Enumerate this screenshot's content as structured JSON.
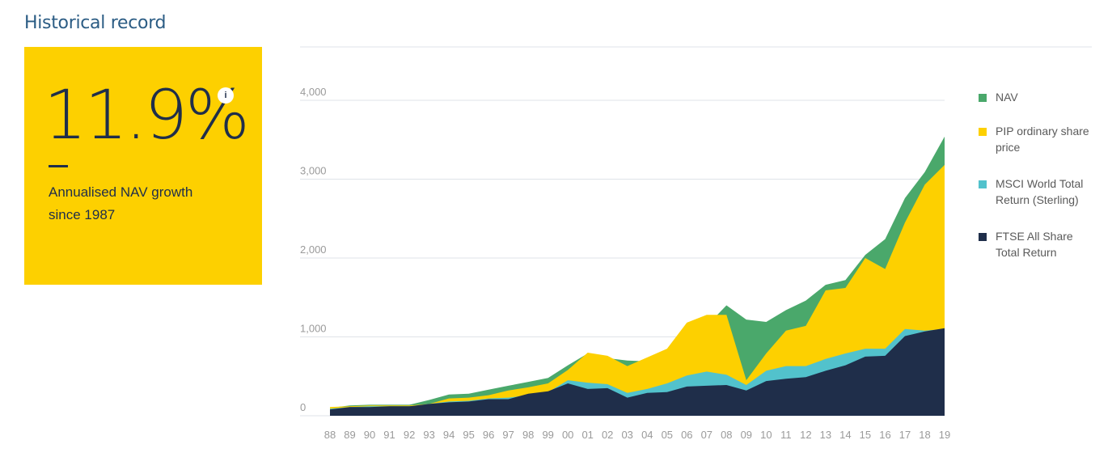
{
  "header": {
    "title": "Historical record"
  },
  "stat": {
    "value": "11.9%",
    "info_label": "i",
    "description": "Annualised NAV growth since 1987"
  },
  "colors": {
    "nav": "#4aa86b",
    "pip": "#fdd000",
    "msci": "#52c2cc",
    "ftse": "#1f2e4a",
    "stat_bg": "#fdd000",
    "title": "#2b5c84",
    "gridline": "#dfe3e8",
    "tick": "#9a9a9a"
  },
  "legend": {
    "items": [
      {
        "label": "NAV",
        "color": "#4aa86b"
      },
      {
        "label": "PIP ordinary share price",
        "color": "#fdd000"
      },
      {
        "label": "MSCI World Total Return (Sterling)",
        "color": "#52c2cc"
      },
      {
        "label": "FTSE All Share Total Return",
        "color": "#1f2e4a"
      }
    ]
  },
  "chart_data": {
    "type": "area",
    "categories": [
      "88",
      "89",
      "90",
      "91",
      "92",
      "93",
      "94",
      "95",
      "96",
      "97",
      "98",
      "99",
      "00",
      "01",
      "02",
      "03",
      "04",
      "05",
      "06",
      "07",
      "08",
      "09",
      "10",
      "11",
      "12",
      "13",
      "14",
      "15",
      "16",
      "17",
      "18",
      "19"
    ],
    "yticks": [
      "0",
      "1,000",
      "2,000",
      "3,000",
      "4,000"
    ],
    "ylim": [
      0,
      4000
    ],
    "grid": true,
    "legend_position": "right",
    "series": [
      {
        "name": "NAV",
        "values": [
          100,
          130,
          140,
          140,
          140,
          200,
          270,
          280,
          330,
          380,
          430,
          480,
          640,
          790,
          730,
          700,
          690,
          810,
          940,
          1140,
          1400,
          1220,
          1190,
          1340,
          1460,
          1660,
          1720,
          2040,
          2240,
          2760,
          3090,
          3540
        ]
      },
      {
        "name": "PIP ordinary share price",
        "values": [
          110,
          120,
          130,
          130,
          130,
          150,
          220,
          230,
          260,
          320,
          360,
          410,
          580,
          800,
          760,
          630,
          740,
          850,
          1180,
          1280,
          1280,
          450,
          790,
          1080,
          1140,
          1590,
          1620,
          2000,
          1860,
          2450,
          2930,
          3180
        ]
      },
      {
        "name": "MSCI World Total Return (Sterling)",
        "values": [
          90,
          110,
          120,
          120,
          120,
          150,
          180,
          190,
          220,
          230,
          260,
          300,
          450,
          420,
          400,
          290,
          340,
          410,
          510,
          560,
          520,
          390,
          570,
          630,
          630,
          720,
          790,
          850,
          850,
          1100,
          1080,
          1100
        ]
      },
      {
        "name": "FTSE All Share Total Return",
        "values": [
          80,
          110,
          110,
          120,
          120,
          150,
          170,
          180,
          210,
          210,
          280,
          310,
          410,
          340,
          350,
          230,
          290,
          300,
          370,
          380,
          390,
          320,
          440,
          470,
          490,
          570,
          640,
          750,
          760,
          1010,
          1070,
          1110
        ]
      }
    ]
  }
}
